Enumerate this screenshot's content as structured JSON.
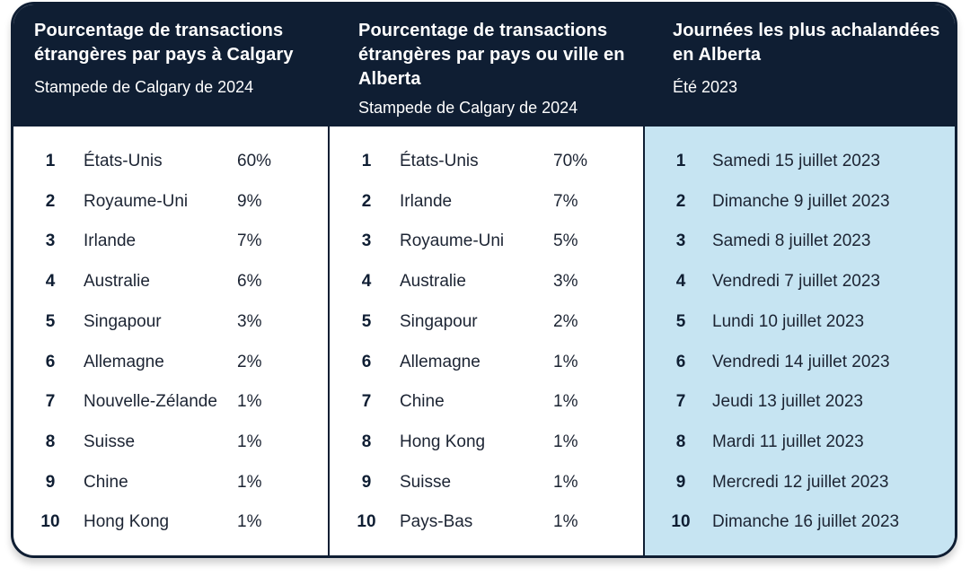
{
  "colors": {
    "navy": "#0f1e33",
    "light_blue": "#c6e4f2",
    "text": "#1c2433"
  },
  "columns": [
    {
      "title": "Pourcentage de transactions étrangères par pays à Calgary",
      "subtitle": "Stampede de Calgary de 2024",
      "rows": [
        {
          "rank": "1",
          "name": "États-Unis",
          "pct": "60%"
        },
        {
          "rank": "2",
          "name": "Royaume-Uni",
          "pct": "9%"
        },
        {
          "rank": "3",
          "name": "Irlande",
          "pct": "7%"
        },
        {
          "rank": "4",
          "name": "Australie",
          "pct": "6%"
        },
        {
          "rank": "5",
          "name": "Singapour",
          "pct": "3%"
        },
        {
          "rank": "6",
          "name": "Allemagne",
          "pct": "2%"
        },
        {
          "rank": "7",
          "name": "Nouvelle-Zélande",
          "pct": "1%"
        },
        {
          "rank": "8",
          "name": "Suisse",
          "pct": "1%"
        },
        {
          "rank": "9",
          "name": "Chine",
          "pct": "1%"
        },
        {
          "rank": "10",
          "name": "Hong Kong",
          "pct": "1%"
        }
      ]
    },
    {
      "title": "Pourcentage de transactions étrangères par pays ou ville en Alberta",
      "subtitle": "Stampede de Calgary de 2024",
      "rows": [
        {
          "rank": "1",
          "name": "États-Unis",
          "pct": "70%"
        },
        {
          "rank": "2",
          "name": "Irlande",
          "pct": "7%"
        },
        {
          "rank": "3",
          "name": "Royaume-Uni",
          "pct": "5%"
        },
        {
          "rank": "4",
          "name": "Australie",
          "pct": "3%"
        },
        {
          "rank": "5",
          "name": "Singapour",
          "pct": "2%"
        },
        {
          "rank": "6",
          "name": "Allemagne",
          "pct": "1%"
        },
        {
          "rank": "7",
          "name": "Chine",
          "pct": "1%"
        },
        {
          "rank": "8",
          "name": "Hong Kong",
          "pct": "1%"
        },
        {
          "rank": "9",
          "name": "Suisse",
          "pct": "1%"
        },
        {
          "rank": "10",
          "name": "Pays-Bas",
          "pct": "1%"
        }
      ]
    },
    {
      "title": "Journées les plus achalandées en Alberta",
      "subtitle": "Été 2023",
      "rows": [
        {
          "rank": "1",
          "name": "Samedi 15 juillet 2023"
        },
        {
          "rank": "2",
          "name": "Dimanche 9 juillet 2023"
        },
        {
          "rank": "3",
          "name": "Samedi 8 juillet 2023"
        },
        {
          "rank": "4",
          "name": "Vendredi 7 juillet 2023"
        },
        {
          "rank": "5",
          "name": "Lundi 10 juillet 2023"
        },
        {
          "rank": "6",
          "name": "Vendredi 14 juillet 2023"
        },
        {
          "rank": "7",
          "name": "Jeudi 13 juillet 2023"
        },
        {
          "rank": "8",
          "name": "Mardi 11 juillet 2023"
        },
        {
          "rank": "9",
          "name": "Mercredi 12 juillet 2023"
        },
        {
          "rank": "10",
          "name": "Dimanche 16 juillet 2023"
        }
      ]
    }
  ]
}
